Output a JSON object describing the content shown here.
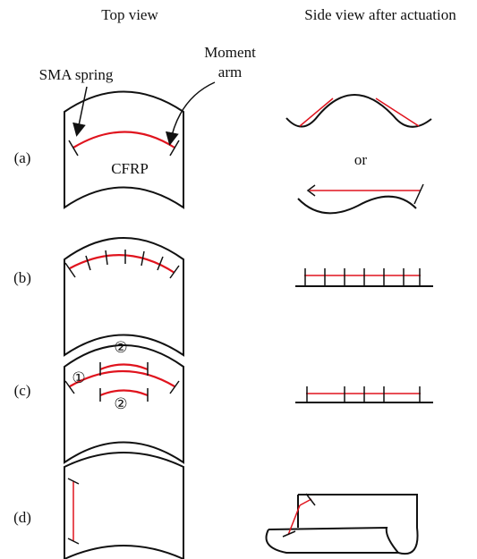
{
  "headers": {
    "top_view": "Top view",
    "side_view": "Side view after actuation"
  },
  "annotations": {
    "moment_arm": [
      "Moment",
      "arm"
    ],
    "sma_spring": "SMA spring",
    "material": "CFRP",
    "or": "or"
  },
  "panels": [
    {
      "label": "(a)"
    },
    {
      "label": "(b)"
    },
    {
      "label": "(c)",
      "markers": [
        "②",
        "①",
        "②"
      ]
    },
    {
      "label": "(d)"
    }
  ]
}
